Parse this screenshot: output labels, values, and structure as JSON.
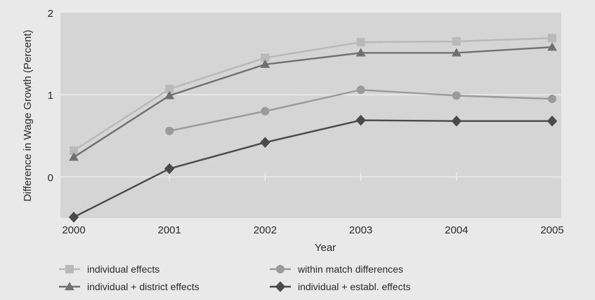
{
  "chart_data": {
    "type": "line",
    "title": "",
    "xlabel": "Year",
    "ylabel": "Difference in Wage Growth (Percent)",
    "x": [
      "2000",
      "2001",
      "2002",
      "2003",
      "2004",
      "2005"
    ],
    "y_ticks": [
      0,
      1,
      2
    ],
    "ylim": [
      -0.5,
      2.0
    ],
    "grid": "y-major",
    "legend_position": "bottom",
    "series": [
      {
        "name": "individual effects",
        "values": [
          0.32,
          1.07,
          1.45,
          1.64,
          1.65,
          1.69
        ],
        "color": "#b9b9b9",
        "marker": "square"
      },
      {
        "name": "individual + district effects",
        "values": [
          0.24,
          0.99,
          1.37,
          1.51,
          1.51,
          1.58
        ],
        "color": "#707070",
        "marker": "triangle"
      },
      {
        "name": "within match differences",
        "values": [
          null,
          0.56,
          0.8,
          1.06,
          0.99,
          0.95
        ],
        "color": "#9a9a9a",
        "marker": "circle"
      },
      {
        "name": "individual + establ. effects",
        "values": [
          -0.49,
          0.1,
          0.42,
          0.69,
          0.68,
          0.68
        ],
        "color": "#4a4a4a",
        "marker": "diamond"
      }
    ]
  }
}
